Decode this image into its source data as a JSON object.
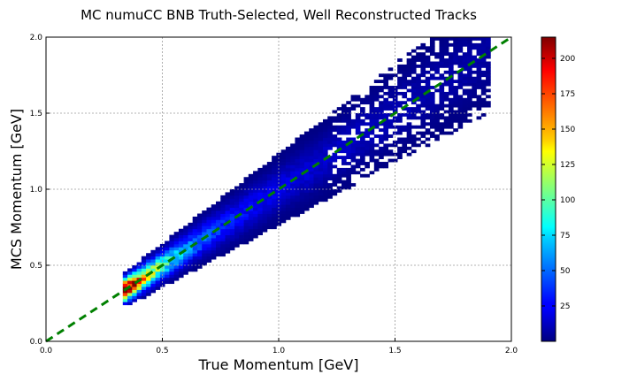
{
  "chart_data": {
    "type": "heatmap",
    "title": "MC numuCC BNB Truth-Selected, Well Reconstructed Tracks",
    "xlabel": "True Momentum [GeV]",
    "ylabel": "MCS Momentum [GeV]",
    "xlim": [
      0.0,
      2.0
    ],
    "ylim": [
      0.0,
      2.0
    ],
    "xticks": [
      "0.0",
      "0.5",
      "1.0",
      "1.5",
      "2.0"
    ],
    "yticks": [
      "0.0",
      "0.5",
      "1.0",
      "1.5",
      "2.0"
    ],
    "grid": true,
    "colorbar": {
      "min": 0,
      "max": 215,
      "ticks": [
        "25",
        "50",
        "75",
        "100",
        "125",
        "150",
        "175",
        "200"
      ],
      "colormap": "jet"
    },
    "reference_line": {
      "style": "dashed",
      "color": "#008000",
      "from": [
        0.0,
        0.0
      ],
      "to": [
        2.0,
        2.0
      ]
    },
    "bin_width": 0.02,
    "bin_height": 0.02,
    "band": {
      "x_range": [
        0.33,
        1.9
      ],
      "peak": {
        "x": 0.36,
        "y": 0.35,
        "count": 215
      },
      "note_band": "counts concentrated along y = x, spreading wider at high momentum"
    }
  }
}
